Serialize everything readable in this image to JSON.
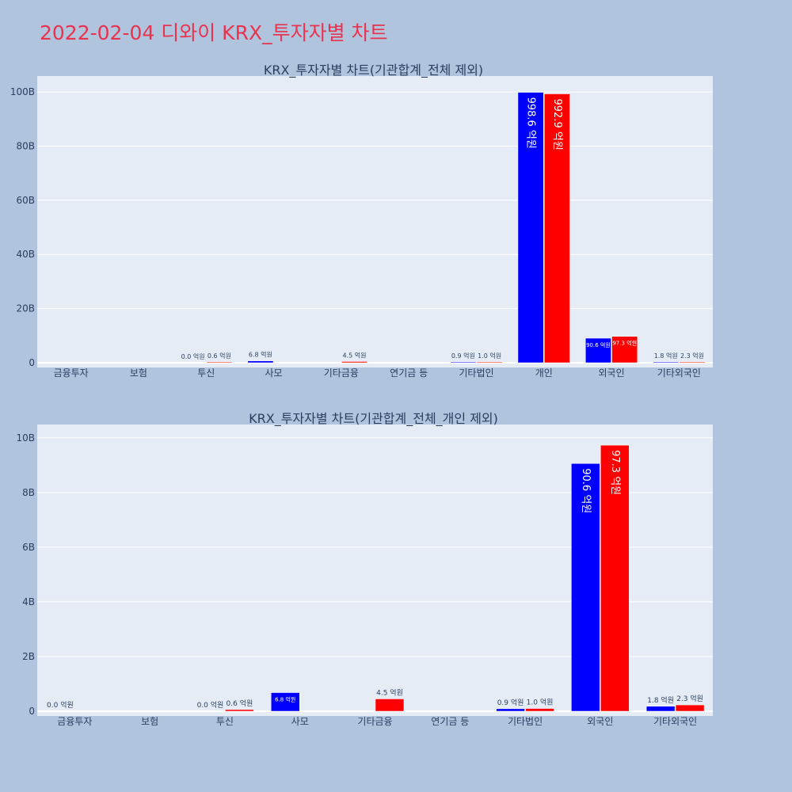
{
  "title": "2022-02-04 디와이 KRX_투자자별 차트",
  "colors": {
    "background": "#b0c4de",
    "plot_bg": "#e5ecf6",
    "title": "#e8334f",
    "series_a": "#0000ff",
    "series_b": "#ff0000",
    "text": "#2a3f5f"
  },
  "chart_data": [
    {
      "type": "bar",
      "title": "KRX_투자자별 차트(기관합계_전체 제외)",
      "categories": [
        "금융투자",
        "보험",
        "투신",
        "사모",
        "기타금융",
        "연기금 등",
        "기타법인",
        "개인",
        "외국인",
        "기타외국인"
      ],
      "y_ticks": [
        "0",
        "20B",
        "40B",
        "60B",
        "80B",
        "100B"
      ],
      "ylim": [
        0,
        105000000000
      ],
      "grid": true,
      "series": [
        {
          "values": [
            0,
            0,
            0,
            680000000,
            0,
            0,
            90000000,
            99860000000,
            9060000000,
            180000000
          ],
          "labels": [
            "",
            "",
            "0.0 억원",
            "6.8 억원",
            "",
            "",
            "0.9 억원",
            "998.6 억원",
            "90.6 억원",
            "1.8 억원"
          ]
        },
        {
          "values": [
            0,
            0,
            60000000,
            0,
            450000000,
            0,
            100000000,
            99290000000,
            9730000000,
            230000000
          ],
          "labels": [
            "",
            "",
            "0.6 억원",
            "",
            "4.5 억원",
            "",
            "1.0 억원",
            "992.9 억원",
            "97.3 억원",
            "2.3 억원"
          ]
        }
      ]
    },
    {
      "type": "bar",
      "title": "KRX_투자자별 차트(기관합계_전체_개인 제외)",
      "categories": [
        "금융투자",
        "보험",
        "투신",
        "사모",
        "기타금융",
        "연기금 등",
        "기타법인",
        "외국인",
        "기타외국인"
      ],
      "y_ticks": [
        "0",
        "2B",
        "4B",
        "6B",
        "8B",
        "10B"
      ],
      "ylim": [
        0,
        10400000000
      ],
      "grid": true,
      "series": [
        {
          "values": [
            0,
            0,
            0,
            680000000,
            0,
            0,
            90000000,
            9060000000,
            180000000
          ],
          "labels": [
            "0.0 억원",
            "",
            "0.0 억원",
            "6.8 억원",
            "",
            "",
            "0.9 억원",
            "90.6 억원",
            "1.8 억원"
          ]
        },
        {
          "values": [
            0,
            0,
            60000000,
            0,
            450000000,
            0,
            100000000,
            9730000000,
            230000000
          ],
          "labels": [
            "",
            "",
            "0.6 억원",
            "",
            "4.5 억원",
            "",
            "1.0 억원",
            "97.3 억원",
            "2.3 억원"
          ]
        }
      ]
    }
  ]
}
